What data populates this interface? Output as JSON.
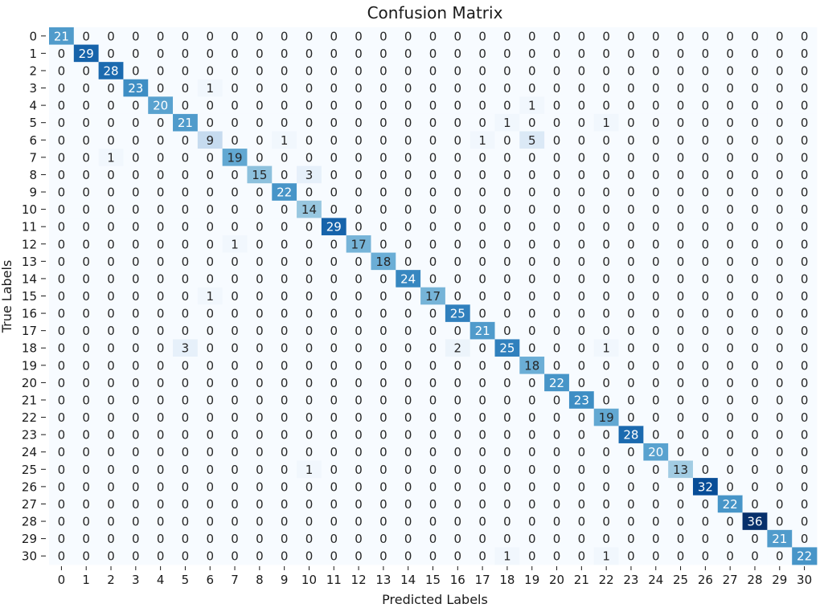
{
  "chart_data": {
    "type": "heatmap",
    "title": "Confusion Matrix",
    "xlabel": "Predicted Labels",
    "ylabel": "True Labels",
    "colormap": "Blues",
    "value_range": [
      0,
      36
    ],
    "colorbar": false,
    "x_categories": [
      "0",
      "1",
      "2",
      "3",
      "4",
      "5",
      "6",
      "7",
      "8",
      "9",
      "10",
      "11",
      "12",
      "13",
      "14",
      "15",
      "16",
      "17",
      "18",
      "19",
      "20",
      "21",
      "22",
      "23",
      "24",
      "25",
      "26",
      "27",
      "28",
      "29",
      "30"
    ],
    "y_categories": [
      "0",
      "1",
      "2",
      "3",
      "4",
      "5",
      "6",
      "7",
      "8",
      "9",
      "10",
      "11",
      "12",
      "13",
      "14",
      "15",
      "16",
      "17",
      "18",
      "19",
      "20",
      "21",
      "22",
      "23",
      "24",
      "25",
      "26",
      "27",
      "28",
      "29",
      "30"
    ],
    "matrix": [
      [
        21,
        0,
        0,
        0,
        0,
        0,
        0,
        0,
        0,
        0,
        0,
        0,
        0,
        0,
        0,
        0,
        0,
        0,
        0,
        0,
        0,
        0,
        0,
        0,
        0,
        0,
        0,
        0,
        0,
        0,
        0
      ],
      [
        0,
        29,
        0,
        0,
        0,
        0,
        0,
        0,
        0,
        0,
        0,
        0,
        0,
        0,
        0,
        0,
        0,
        0,
        0,
        0,
        0,
        0,
        0,
        0,
        0,
        0,
        0,
        0,
        0,
        0,
        0
      ],
      [
        0,
        0,
        28,
        0,
        0,
        0,
        0,
        0,
        0,
        0,
        0,
        0,
        0,
        0,
        0,
        0,
        0,
        0,
        0,
        0,
        0,
        0,
        0,
        0,
        0,
        0,
        0,
        0,
        0,
        0,
        0
      ],
      [
        0,
        0,
        0,
        23,
        0,
        0,
        1,
        0,
        0,
        0,
        0,
        0,
        0,
        0,
        0,
        0,
        0,
        0,
        0,
        0,
        0,
        0,
        0,
        0,
        0,
        0,
        0,
        0,
        0,
        0,
        0
      ],
      [
        0,
        0,
        0,
        0,
        20,
        0,
        0,
        0,
        0,
        0,
        0,
        0,
        0,
        0,
        0,
        0,
        0,
        0,
        0,
        1,
        0,
        0,
        0,
        0,
        0,
        0,
        0,
        0,
        0,
        0,
        0
      ],
      [
        0,
        0,
        0,
        0,
        0,
        21,
        0,
        0,
        0,
        0,
        0,
        0,
        0,
        0,
        0,
        0,
        0,
        0,
        1,
        0,
        0,
        0,
        1,
        0,
        0,
        0,
        0,
        0,
        0,
        0,
        0
      ],
      [
        0,
        0,
        0,
        0,
        0,
        0,
        9,
        0,
        0,
        1,
        0,
        0,
        0,
        0,
        0,
        0,
        0,
        1,
        0,
        5,
        0,
        0,
        0,
        0,
        0,
        0,
        0,
        0,
        0,
        0,
        0
      ],
      [
        0,
        0,
        1,
        0,
        0,
        0,
        0,
        19,
        0,
        0,
        0,
        0,
        0,
        0,
        0,
        0,
        0,
        0,
        0,
        0,
        0,
        0,
        0,
        0,
        0,
        0,
        0,
        0,
        0,
        0,
        0
      ],
      [
        0,
        0,
        0,
        0,
        0,
        0,
        0,
        0,
        15,
        0,
        3,
        0,
        0,
        0,
        0,
        0,
        0,
        0,
        0,
        0,
        0,
        0,
        0,
        0,
        0,
        0,
        0,
        0,
        0,
        0,
        0
      ],
      [
        0,
        0,
        0,
        0,
        0,
        0,
        0,
        0,
        0,
        22,
        0,
        0,
        0,
        0,
        0,
        0,
        0,
        0,
        0,
        0,
        0,
        0,
        0,
        0,
        0,
        0,
        0,
        0,
        0,
        0,
        0
      ],
      [
        0,
        0,
        0,
        0,
        0,
        0,
        0,
        0,
        0,
        0,
        14,
        0,
        0,
        0,
        0,
        0,
        0,
        0,
        0,
        0,
        0,
        0,
        0,
        0,
        0,
        0,
        0,
        0,
        0,
        0,
        0
      ],
      [
        0,
        0,
        0,
        0,
        0,
        0,
        0,
        0,
        0,
        0,
        0,
        29,
        0,
        0,
        0,
        0,
        0,
        0,
        0,
        0,
        0,
        0,
        0,
        0,
        0,
        0,
        0,
        0,
        0,
        0,
        0
      ],
      [
        0,
        0,
        0,
        0,
        0,
        0,
        0,
        1,
        0,
        0,
        0,
        0,
        17,
        0,
        0,
        0,
        0,
        0,
        0,
        0,
        0,
        0,
        0,
        0,
        0,
        0,
        0,
        0,
        0,
        0,
        0
      ],
      [
        0,
        0,
        0,
        0,
        0,
        0,
        0,
        0,
        0,
        0,
        0,
        0,
        0,
        18,
        0,
        0,
        0,
        0,
        0,
        0,
        0,
        0,
        0,
        0,
        0,
        0,
        0,
        0,
        0,
        0,
        0
      ],
      [
        0,
        0,
        0,
        0,
        0,
        0,
        0,
        0,
        0,
        0,
        0,
        0,
        0,
        0,
        24,
        0,
        0,
        0,
        0,
        0,
        0,
        0,
        0,
        0,
        0,
        0,
        0,
        0,
        0,
        0,
        0
      ],
      [
        0,
        0,
        0,
        0,
        0,
        0,
        1,
        0,
        0,
        0,
        0,
        0,
        0,
        0,
        0,
        17,
        0,
        0,
        0,
        0,
        0,
        0,
        0,
        0,
        0,
        0,
        0,
        0,
        0,
        0,
        0
      ],
      [
        0,
        0,
        0,
        0,
        0,
        0,
        0,
        0,
        0,
        0,
        0,
        0,
        0,
        0,
        0,
        0,
        25,
        0,
        0,
        0,
        0,
        0,
        0,
        0,
        0,
        0,
        0,
        0,
        0,
        0,
        0
      ],
      [
        0,
        0,
        0,
        0,
        0,
        0,
        0,
        0,
        0,
        0,
        0,
        0,
        0,
        0,
        0,
        0,
        0,
        21,
        0,
        0,
        0,
        0,
        0,
        0,
        0,
        0,
        0,
        0,
        0,
        0,
        0
      ],
      [
        0,
        0,
        0,
        0,
        0,
        3,
        0,
        0,
        0,
        0,
        0,
        0,
        0,
        0,
        0,
        0,
        2,
        0,
        25,
        0,
        0,
        0,
        1,
        0,
        0,
        0,
        0,
        0,
        0,
        0,
        0
      ],
      [
        0,
        0,
        0,
        0,
        0,
        0,
        0,
        0,
        0,
        0,
        0,
        0,
        0,
        0,
        0,
        0,
        0,
        0,
        0,
        18,
        0,
        0,
        0,
        0,
        0,
        0,
        0,
        0,
        0,
        0,
        0
      ],
      [
        0,
        0,
        0,
        0,
        0,
        0,
        0,
        0,
        0,
        0,
        0,
        0,
        0,
        0,
        0,
        0,
        0,
        0,
        0,
        0,
        22,
        0,
        0,
        0,
        0,
        0,
        0,
        0,
        0,
        0,
        0
      ],
      [
        0,
        0,
        0,
        0,
        0,
        0,
        0,
        0,
        0,
        0,
        0,
        0,
        0,
        0,
        0,
        0,
        0,
        0,
        0,
        0,
        0,
        23,
        0,
        0,
        0,
        0,
        0,
        0,
        0,
        0,
        0
      ],
      [
        0,
        0,
        0,
        0,
        0,
        0,
        0,
        0,
        0,
        0,
        0,
        0,
        0,
        0,
        0,
        0,
        0,
        0,
        0,
        0,
        0,
        0,
        19,
        0,
        0,
        0,
        0,
        0,
        0,
        0,
        0
      ],
      [
        0,
        0,
        0,
        0,
        0,
        0,
        0,
        0,
        0,
        0,
        0,
        0,
        0,
        0,
        0,
        0,
        0,
        0,
        0,
        0,
        0,
        0,
        0,
        28,
        0,
        0,
        0,
        0,
        0,
        0,
        0
      ],
      [
        0,
        0,
        0,
        0,
        0,
        0,
        0,
        0,
        0,
        0,
        0,
        0,
        0,
        0,
        0,
        0,
        0,
        0,
        0,
        0,
        0,
        0,
        0,
        0,
        20,
        0,
        0,
        0,
        0,
        0,
        0
      ],
      [
        0,
        0,
        0,
        0,
        0,
        0,
        0,
        0,
        0,
        0,
        1,
        0,
        0,
        0,
        0,
        0,
        0,
        0,
        0,
        0,
        0,
        0,
        0,
        0,
        0,
        13,
        0,
        0,
        0,
        0,
        0
      ],
      [
        0,
        0,
        0,
        0,
        0,
        0,
        0,
        0,
        0,
        0,
        0,
        0,
        0,
        0,
        0,
        0,
        0,
        0,
        0,
        0,
        0,
        0,
        0,
        0,
        0,
        0,
        32,
        0,
        0,
        0,
        0
      ],
      [
        0,
        0,
        0,
        0,
        0,
        0,
        0,
        0,
        0,
        0,
        0,
        0,
        0,
        0,
        0,
        0,
        0,
        0,
        0,
        0,
        0,
        0,
        0,
        0,
        0,
        0,
        0,
        22,
        0,
        0,
        0
      ],
      [
        0,
        0,
        0,
        0,
        0,
        0,
        0,
        0,
        0,
        0,
        0,
        0,
        0,
        0,
        0,
        0,
        0,
        0,
        0,
        0,
        0,
        0,
        0,
        0,
        0,
        0,
        0,
        0,
        36,
        0,
        0
      ],
      [
        0,
        0,
        0,
        0,
        0,
        0,
        0,
        0,
        0,
        0,
        0,
        0,
        0,
        0,
        0,
        0,
        0,
        0,
        0,
        0,
        0,
        0,
        0,
        0,
        0,
        0,
        0,
        0,
        0,
        21,
        0
      ],
      [
        0,
        0,
        0,
        0,
        0,
        0,
        0,
        0,
        0,
        0,
        0,
        0,
        0,
        0,
        0,
        0,
        0,
        0,
        1,
        0,
        0,
        0,
        1,
        0,
        0,
        0,
        0,
        0,
        0,
        0,
        22
      ]
    ]
  }
}
